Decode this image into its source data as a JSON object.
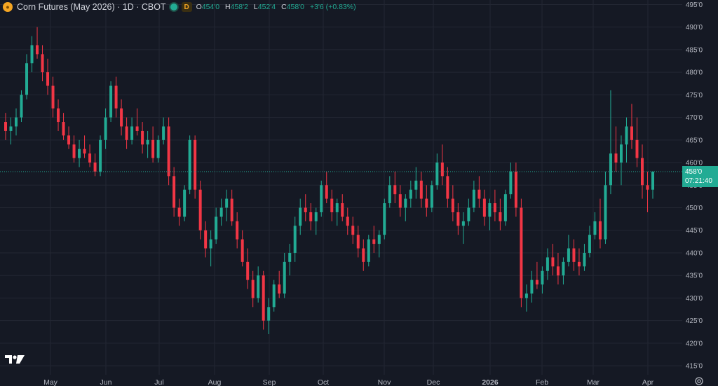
{
  "header": {
    "symbol_icon": "corn-coin-icon",
    "title": "Corn Futures (May 2026) · 1D · CBOT",
    "status": "market-open-dot",
    "badge": "D",
    "ohlc": [
      {
        "k": "O",
        "v": "454'0"
      },
      {
        "k": "H",
        "v": "458'2"
      },
      {
        "k": "L",
        "v": "452'4"
      },
      {
        "k": "C",
        "v": "458'0"
      },
      {
        "k": "",
        "v": "+3'6 (+0.83%)"
      }
    ]
  },
  "price_label": {
    "price": "458'0",
    "countdown": "07:21:40"
  },
  "colors": {
    "up": "#22ab94",
    "down": "#f23645",
    "bg": "#151924",
    "grid": "#232733"
  },
  "chart_data": {
    "type": "candlestick",
    "title": "Corn Futures (May 2026)",
    "ylim": [
      413,
      496
    ],
    "y_ticks": [
      415,
      420,
      425,
      430,
      435,
      440,
      445,
      450,
      455,
      460,
      465,
      470,
      475,
      480,
      485,
      490,
      495
    ],
    "y_tick_labels": [
      "415'0",
      "420'0",
      "425'0",
      "430'0",
      "435'0",
      "440'0",
      "445'0",
      "450'0",
      "455'0",
      "460'0",
      "465'0",
      "470'0",
      "475'0",
      "480'0",
      "485'0",
      "490'0",
      "495'0"
    ],
    "x_labels": [
      "May",
      "Jun",
      "Jul",
      "Aug",
      "Sep",
      "Oct",
      "Nov",
      "Dec",
      "2026",
      "Feb",
      "Mar",
      "Apr"
    ],
    "last_price": 458.0,
    "ohlc": [
      [
        469,
        471,
        465,
        467
      ],
      [
        467,
        470,
        464,
        468
      ],
      [
        468,
        472,
        466,
        470
      ],
      [
        470,
        476,
        469,
        475
      ],
      [
        475,
        484,
        474,
        482
      ],
      [
        482,
        488,
        480,
        486
      ],
      [
        486,
        490,
        483,
        484
      ],
      [
        484,
        486,
        478,
        480
      ],
      [
        480,
        483,
        475,
        477
      ],
      [
        477,
        479,
        470,
        472
      ],
      [
        472,
        474,
        467,
        469
      ],
      [
        469,
        471,
        465,
        466
      ],
      [
        466,
        468,
        463,
        464
      ],
      [
        464,
        466,
        460,
        461
      ],
      [
        461,
        465,
        459,
        463
      ],
      [
        463,
        466,
        461,
        462
      ],
      [
        462,
        464,
        459,
        460
      ],
      [
        460,
        462,
        457,
        458
      ],
      [
        458,
        466,
        457,
        465
      ],
      [
        465,
        472,
        463,
        470
      ],
      [
        470,
        478,
        469,
        477
      ],
      [
        477,
        479,
        470,
        472
      ],
      [
        472,
        474,
        466,
        468
      ],
      [
        468,
        470,
        463,
        465
      ],
      [
        465,
        470,
        464,
        468
      ],
      [
        468,
        472,
        466,
        467
      ],
      [
        467,
        469,
        462,
        464
      ],
      [
        464,
        467,
        461,
        465
      ],
      [
        465,
        468,
        460,
        461
      ],
      [
        461,
        466,
        460,
        465
      ],
      [
        465,
        470,
        464,
        468
      ],
      [
        468,
        470,
        455,
        457
      ],
      [
        457,
        459,
        448,
        450
      ],
      [
        450,
        452,
        446,
        448
      ],
      [
        448,
        455,
        447,
        454
      ],
      [
        454,
        466,
        453,
        465
      ],
      [
        465,
        466,
        452,
        454
      ],
      [
        454,
        456,
        443,
        445
      ],
      [
        445,
        447,
        439,
        441
      ],
      [
        441,
        445,
        437,
        443
      ],
      [
        443,
        450,
        442,
        448
      ],
      [
        448,
        452,
        446,
        450
      ],
      [
        450,
        454,
        447,
        452
      ],
      [
        452,
        454,
        446,
        447
      ],
      [
        447,
        449,
        441,
        443
      ],
      [
        443,
        445,
        437,
        438
      ],
      [
        438,
        441,
        432,
        434
      ],
      [
        434,
        436,
        428,
        430
      ],
      [
        430,
        437,
        429,
        435
      ],
      [
        435,
        436,
        423,
        425
      ],
      [
        425,
        430,
        422,
        428
      ],
      [
        428,
        434,
        427,
        433
      ],
      [
        433,
        436,
        430,
        431
      ],
      [
        431,
        440,
        430,
        438
      ],
      [
        438,
        442,
        435,
        440
      ],
      [
        440,
        448,
        438,
        446
      ],
      [
        446,
        452,
        444,
        450
      ],
      [
        450,
        453,
        447,
        449
      ],
      [
        449,
        451,
        445,
        447
      ],
      [
        447,
        450,
        444,
        449
      ],
      [
        449,
        456,
        448,
        455
      ],
      [
        455,
        458,
        451,
        452
      ],
      [
        452,
        454,
        447,
        449
      ],
      [
        449,
        452,
        446,
        451
      ],
      [
        451,
        453,
        447,
        448
      ],
      [
        448,
        450,
        444,
        446
      ],
      [
        446,
        448,
        442,
        444
      ],
      [
        444,
        446,
        439,
        441
      ],
      [
        441,
        443,
        436,
        438
      ],
      [
        438,
        444,
        437,
        443
      ],
      [
        443,
        446,
        440,
        442
      ],
      [
        442,
        445,
        439,
        444
      ],
      [
        444,
        452,
        443,
        451
      ],
      [
        451,
        457,
        450,
        455
      ],
      [
        455,
        458,
        451,
        453
      ],
      [
        453,
        455,
        448,
        450
      ],
      [
        450,
        453,
        447,
        452
      ],
      [
        452,
        456,
        450,
        454
      ],
      [
        454,
        459,
        452,
        456
      ],
      [
        456,
        458,
        450,
        452
      ],
      [
        452,
        455,
        448,
        450
      ],
      [
        450,
        456,
        449,
        455
      ],
      [
        455,
        462,
        454,
        460
      ],
      [
        460,
        464,
        455,
        457
      ],
      [
        457,
        459,
        450,
        452
      ],
      [
        452,
        455,
        447,
        449
      ],
      [
        449,
        451,
        444,
        446
      ],
      [
        446,
        449,
        442,
        447
      ],
      [
        447,
        452,
        446,
        450
      ],
      [
        450,
        456,
        449,
        454
      ],
      [
        454,
        457,
        450,
        452
      ],
      [
        452,
        454,
        446,
        448
      ],
      [
        448,
        452,
        445,
        451
      ],
      [
        451,
        454,
        447,
        449
      ],
      [
        449,
        452,
        445,
        447
      ],
      [
        447,
        454,
        446,
        453
      ],
      [
        453,
        460,
        452,
        458
      ],
      [
        458,
        460,
        448,
        450
      ],
      [
        450,
        452,
        428,
        430
      ],
      [
        430,
        433,
        427,
        431
      ],
      [
        431,
        436,
        429,
        434
      ],
      [
        434,
        438,
        432,
        433
      ],
      [
        433,
        437,
        431,
        436
      ],
      [
        436,
        441,
        434,
        439
      ],
      [
        439,
        442,
        435,
        437
      ],
      [
        437,
        440,
        433,
        435
      ],
      [
        435,
        439,
        433,
        438
      ],
      [
        438,
        444,
        437,
        441
      ],
      [
        441,
        443,
        436,
        438
      ],
      [
        438,
        441,
        435,
        437
      ],
      [
        437,
        442,
        436,
        440
      ],
      [
        440,
        446,
        439,
        444
      ],
      [
        444,
        449,
        443,
        447
      ],
      [
        447,
        452,
        441,
        443
      ],
      [
        443,
        458,
        442,
        455
      ],
      [
        455,
        476,
        453,
        462
      ],
      [
        462,
        468,
        458,
        460
      ],
      [
        460,
        466,
        455,
        464
      ],
      [
        464,
        470,
        460,
        468
      ],
      [
        468,
        473,
        463,
        465
      ],
      [
        465,
        470,
        459,
        461
      ],
      [
        461,
        464,
        452,
        455
      ],
      [
        455,
        458,
        449,
        454
      ],
      [
        454,
        458,
        452,
        458
      ]
    ]
  }
}
